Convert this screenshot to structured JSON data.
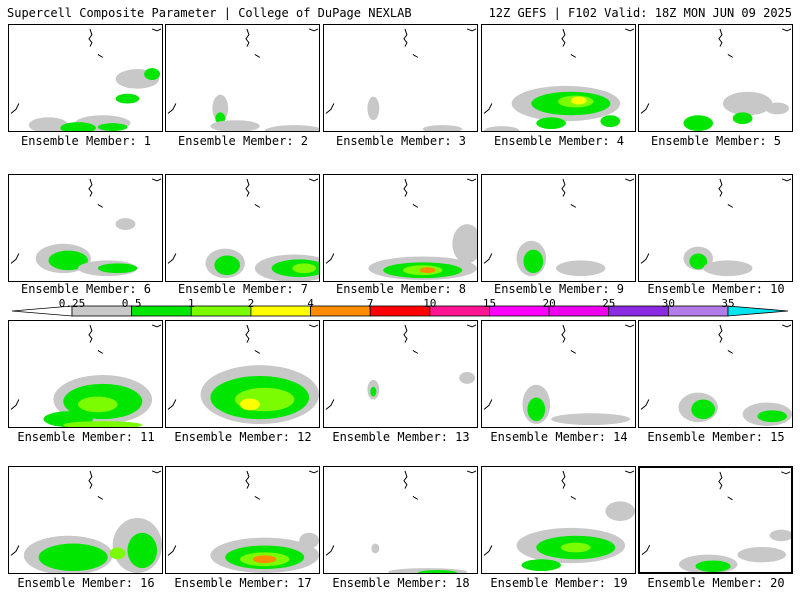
{
  "header": {
    "left": "Supercell Composite Parameter | College of DuPage NEXLAB",
    "right": "12Z GEFS | F102 Valid: 18Z MON JUN 09 2025"
  },
  "colorbar": {
    "levels": [
      "0.25",
      "0.5",
      "1",
      "2",
      "4",
      "7",
      "10",
      "15",
      "20",
      "25",
      "30",
      "35"
    ],
    "colors": [
      "#ffffff",
      "#c8c8c8",
      "#00e600",
      "#7cfc00",
      "#ffff00",
      "#ff8c00",
      "#ff0000",
      "#ff1493",
      "#ff00ff",
      "#ee00ee",
      "#8a2be2",
      "#b37be8",
      "#00e5ee"
    ]
  },
  "members": [
    {
      "label": "Ensemble Member: 1"
    },
    {
      "label": "Ensemble Member: 2"
    },
    {
      "label": "Ensemble Member: 3"
    },
    {
      "label": "Ensemble Member: 4"
    },
    {
      "label": "Ensemble Member: 5"
    },
    {
      "label": "Ensemble Member: 6"
    },
    {
      "label": "Ensemble Member: 7"
    },
    {
      "label": "Ensemble Member: 8"
    },
    {
      "label": "Ensemble Member: 9"
    },
    {
      "label": "Ensemble Member: 10"
    },
    {
      "label": "Ensemble Member: 11"
    },
    {
      "label": "Ensemble Member: 12"
    },
    {
      "label": "Ensemble Member: 13"
    },
    {
      "label": "Ensemble Member: 14"
    },
    {
      "label": "Ensemble Member: 15"
    },
    {
      "label": "Ensemble Member: 16"
    },
    {
      "label": "Ensemble Member: 17"
    },
    {
      "label": "Ensemble Member: 18"
    },
    {
      "label": "Ensemble Member: 19"
    },
    {
      "label": "Ensemble Member: 20"
    }
  ]
}
